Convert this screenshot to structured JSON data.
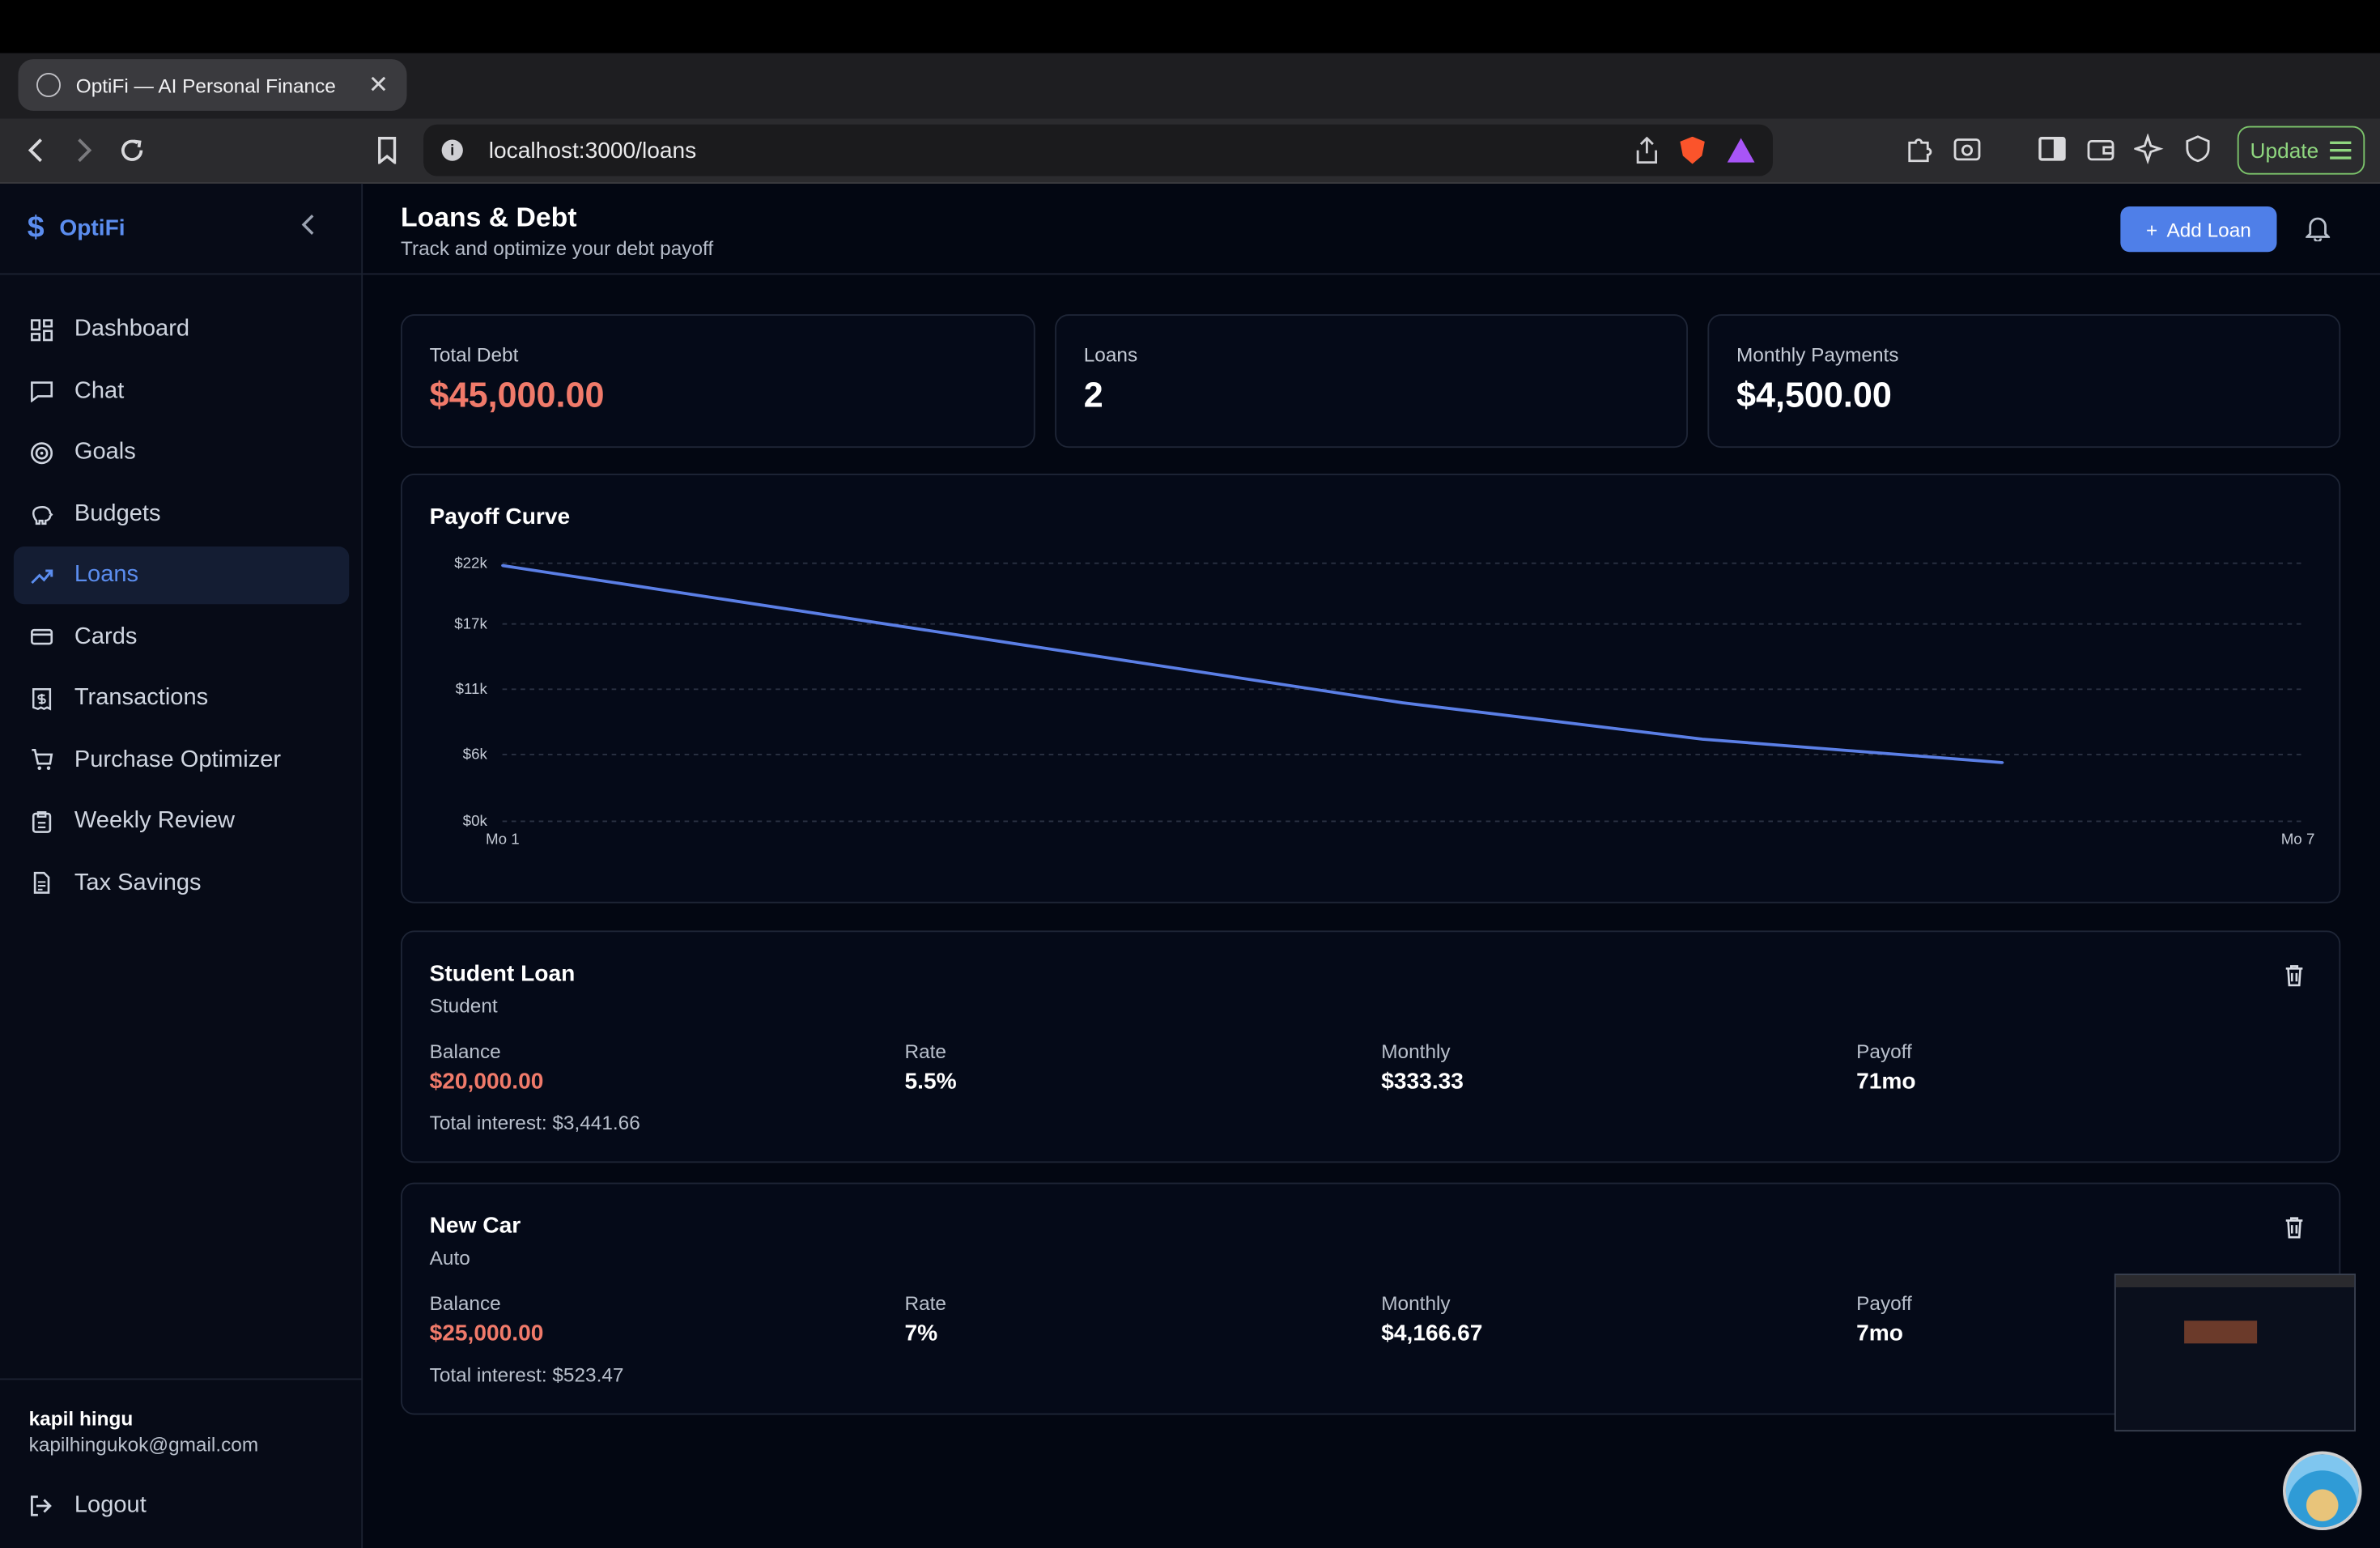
{
  "browser": {
    "tab_title": "OptiFi — AI Personal Finance",
    "url": "localhost:3000/loans",
    "update_label": "Update"
  },
  "sidebar": {
    "brand": "OptiFi",
    "items": [
      {
        "label": "Dashboard",
        "icon": "dashboard-icon"
      },
      {
        "label": "Chat",
        "icon": "chat-icon"
      },
      {
        "label": "Goals",
        "icon": "target-icon"
      },
      {
        "label": "Budgets",
        "icon": "piggy-bank-icon"
      },
      {
        "label": "Loans",
        "icon": "trending-up-icon",
        "active": true
      },
      {
        "label": "Cards",
        "icon": "credit-card-icon"
      },
      {
        "label": "Transactions",
        "icon": "receipt-icon"
      },
      {
        "label": "Purchase Optimizer",
        "icon": "cart-icon"
      },
      {
        "label": "Weekly Review",
        "icon": "clipboard-icon"
      },
      {
        "label": "Tax Savings",
        "icon": "document-icon"
      }
    ],
    "user_name": "kapil hingu",
    "user_email": "kapilhingukok@gmail.com",
    "logout_label": "Logout"
  },
  "header": {
    "title": "Loans & Debt",
    "subtitle": "Track and optimize your debt payoff",
    "add_button": "Add Loan"
  },
  "stats": [
    {
      "label": "Total Debt",
      "value": "$45,000.00",
      "color": "#f07a6a"
    },
    {
      "label": "Loans",
      "value": "2",
      "color": "#ffffff"
    },
    {
      "label": "Monthly Payments",
      "value": "$4,500.00",
      "color": "#ffffff"
    }
  ],
  "chart_data": {
    "type": "line",
    "title": "Payoff Curve",
    "y_ticks": [
      "$22k",
      "$17k",
      "$11k",
      "$6k",
      "$0k"
    ],
    "x_tick_labels": [
      "Mo 1",
      "Mo 7"
    ],
    "x": [
      1,
      2,
      3,
      4,
      5,
      6
    ],
    "values": [
      21800,
      17900,
      14000,
      10100,
      7000,
      5000
    ],
    "ylim": [
      0,
      22000
    ],
    "xlim": [
      1,
      7
    ],
    "grid": true,
    "line_color": "#5b7fe6"
  },
  "loans": [
    {
      "name": "Student Loan",
      "type": "Student",
      "balance_label": "Balance",
      "balance": "$20,000.00",
      "rate_label": "Rate",
      "rate": "5.5%",
      "monthly_label": "Monthly",
      "monthly": "$333.33",
      "payoff_label": "Payoff",
      "payoff": "71mo",
      "total_interest": "Total interest: $3,441.66"
    },
    {
      "name": "New Car",
      "type": "Auto",
      "balance_label": "Balance",
      "balance": "$25,000.00",
      "rate_label": "Rate",
      "rate": "7%",
      "monthly_label": "Monthly",
      "monthly": "$4,166.67",
      "payoff_label": "Payoff",
      "payoff": "7mo",
      "total_interest": "Total interest: $523.47"
    }
  ]
}
